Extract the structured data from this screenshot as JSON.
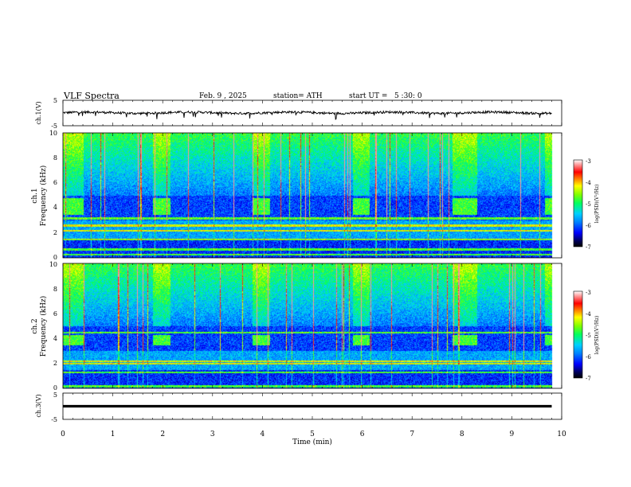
{
  "header": {
    "title": "VLF Spectra",
    "date": "Feb. 9 , 2025",
    "station": "station= ATH",
    "start_ut": "start UT =   5 :30: 0"
  },
  "chart_data": [
    {
      "type": "line",
      "ylabel": "ch.1(V)",
      "ylim": [
        -5,
        5
      ],
      "yticks": [
        "5",
        "-5"
      ],
      "x_range_min": [
        0,
        9.8
      ],
      "baseline_v": 0.1,
      "note_series": "noisy trace near 0 V with occasional downward spikes to about -2 V"
    },
    {
      "type": "heatmap",
      "ylabel": "ch.1\nFrequency (kHz)",
      "ylim": [
        0,
        10
      ],
      "yticks": [
        "0",
        "2",
        "4",
        "6",
        "8",
        "10"
      ],
      "colorbar": {
        "label": "log(PSD)(V²/Hz)",
        "range": [
          -7,
          -3
        ],
        "ticks": [
          "-3",
          "-4",
          "-5",
          "-6",
          "-7"
        ]
      },
      "bright_patch_intervals_min": [
        [
          0,
          0.4
        ],
        [
          1.8,
          2.15
        ],
        [
          3.8,
          4.15
        ],
        [
          5.8,
          6.15
        ],
        [
          7.8,
          8.3
        ],
        [
          9.65,
          9.8
        ]
      ],
      "bright_patch_freq_khz": [
        3.5,
        4.8
      ],
      "strong_lines_khz": [
        0.3,
        0.7,
        1.5,
        2.2,
        2.6,
        3.2
      ]
    },
    {
      "type": "heatmap",
      "ylabel": "ch.2\nFrequency (kHz)",
      "ylim": [
        0,
        10
      ],
      "yticks": [
        "0",
        "2",
        "4",
        "6",
        "8",
        "10"
      ],
      "colorbar": {
        "label": "log(PSD)(V²/Hz)",
        "range": [
          -7,
          -3
        ],
        "ticks": [
          "-3",
          "-4",
          "-5",
          "-6",
          "-7"
        ]
      },
      "bright_patch_intervals_min": [
        [
          0,
          0.4
        ],
        [
          1.8,
          2.15
        ],
        [
          3.8,
          4.15
        ],
        [
          5.8,
          6.15
        ],
        [
          7.8,
          8.3
        ],
        [
          9.65,
          9.8
        ]
      ],
      "bright_patch_freq_khz": [
        3.5,
        4.3
      ],
      "strong_lines_khz": [
        0.2,
        1.3,
        2.0,
        2.2,
        4.5
      ]
    },
    {
      "type": "line",
      "ylabel": "ch.3(V)",
      "ylim": [
        -5,
        5
      ],
      "yticks": [
        "5",
        "-5"
      ],
      "x_range_min": [
        0,
        9.8
      ],
      "baseline_v": 0
    }
  ],
  "x_axis": {
    "label": "Time (min)",
    "ticks": [
      "0",
      "1",
      "2",
      "3",
      "4",
      "5",
      "6",
      "7",
      "8",
      "9",
      "10"
    ],
    "range": [
      0,
      10
    ]
  }
}
